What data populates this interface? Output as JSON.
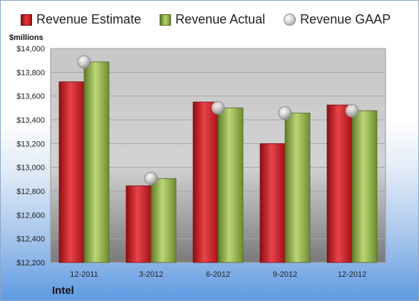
{
  "chart_data": {
    "type": "bar",
    "unit_label": "$millions",
    "company": "Intel",
    "categories": [
      "12-2011",
      "3-2012",
      "6-2012",
      "9-2012",
      "12-2012"
    ],
    "series": [
      {
        "name": "Revenue Estimate",
        "kind": "bar",
        "color": "#c8191f",
        "values": [
          13720,
          12845,
          13550,
          13200,
          13525
        ]
      },
      {
        "name": "Revenue Actual",
        "kind": "bar",
        "color": "#8fae4a",
        "values": [
          13887,
          12906,
          13501,
          13457,
          13477
        ]
      },
      {
        "name": "Revenue GAAP",
        "kind": "marker",
        "color": "#b0b0b0",
        "values": [
          13887,
          12906,
          13501,
          13457,
          13477
        ]
      }
    ],
    "ylim": [
      12200,
      14000
    ],
    "yticks": [
      "$12,200",
      "$12,400",
      "$12,600",
      "$12,800",
      "$13,000",
      "$13,200",
      "$13,400",
      "$13,600",
      "$13,800",
      "$14,000"
    ],
    "ytick_values": [
      12200,
      12400,
      12600,
      12800,
      13000,
      13200,
      13400,
      13600,
      13800,
      14000
    ],
    "grid": true,
    "legend_position": "top"
  }
}
